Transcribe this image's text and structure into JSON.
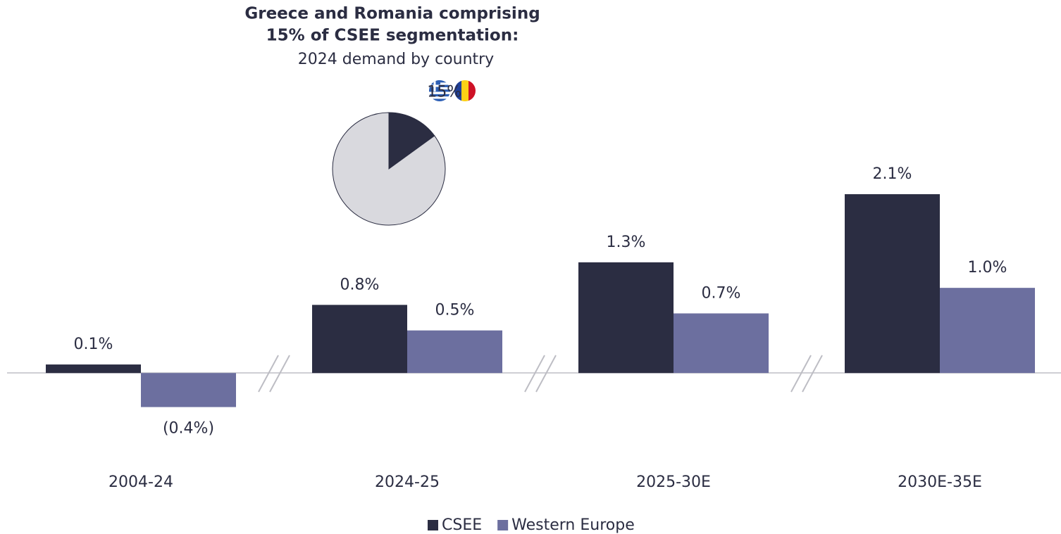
{
  "chart_data": [
    {
      "type": "bar",
      "categories": [
        "2004-24",
        "2024-25",
        "2025-30E",
        "2030E-35E"
      ],
      "series": [
        {
          "name": "CSEE",
          "color": "#2b2d42",
          "values": [
            0.1,
            0.8,
            1.3,
            2.1
          ],
          "value_labels": [
            "0.1%",
            "0.8%",
            "1.3%",
            "2.1%"
          ]
        },
        {
          "name": "Western Europe",
          "color": "#6c6f9f",
          "values": [
            -0.4,
            0.5,
            0.7,
            1.0
          ],
          "value_labels": [
            "(0.4%)",
            "0.5%",
            "0.7%",
            "1.0%"
          ]
        }
      ],
      "ylim": [
        -0.8,
        2.5
      ],
      "legend": "bottom"
    },
    {
      "type": "pie",
      "title": [
        "Greece and Romania comprising",
        "15% of CSEE segmentation:"
      ],
      "subtitle": "2024 demand by country",
      "values": [
        15,
        85
      ],
      "value_labels": [
        "15%",
        null
      ],
      "colors": [
        "#2b2d42",
        "#d9d9de"
      ]
    }
  ]
}
